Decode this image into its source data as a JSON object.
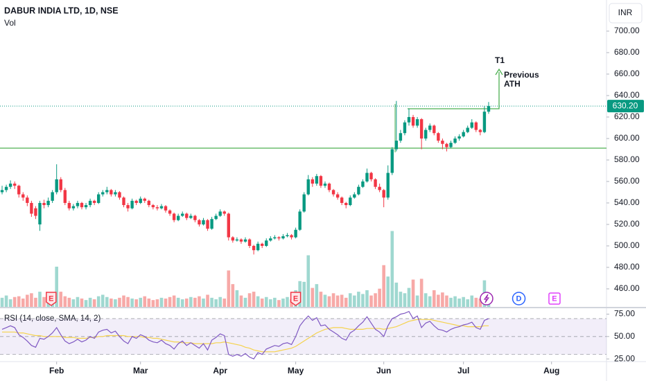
{
  "chart_data": {
    "type": "candlestick",
    "title": "DABUR INDIA LTD, 1D, NSE",
    "volume_label": "Vol",
    "currency": "INR",
    "candles": [
      [
        550,
        556,
        548,
        552
      ],
      [
        552,
        557,
        550,
        555
      ],
      [
        555,
        561,
        553,
        558
      ],
      [
        558,
        560,
        553,
        556
      ],
      [
        556,
        557,
        545,
        548
      ],
      [
        548,
        550,
        542,
        545
      ],
      [
        545,
        547,
        537,
        540
      ],
      [
        540,
        542,
        527,
        530
      ],
      [
        535,
        537,
        525,
        528
      ],
      [
        520,
        542,
        514,
        540
      ],
      [
        540,
        543,
        535,
        538
      ],
      [
        538,
        545,
        536,
        542
      ],
      [
        542,
        552,
        540,
        550
      ],
      [
        550,
        576,
        548,
        562
      ],
      [
        562,
        564,
        550,
        552
      ],
      [
        552,
        554,
        538,
        540
      ],
      [
        540,
        542,
        533,
        535
      ],
      [
        535,
        539,
        533,
        537
      ],
      [
        537,
        542,
        535,
        540
      ],
      [
        540,
        541,
        534,
        536
      ],
      [
        536,
        540,
        534,
        538
      ],
      [
        538,
        544,
        536,
        542
      ],
      [
        542,
        543,
        538,
        540
      ],
      [
        540,
        550,
        539,
        548
      ],
      [
        548,
        552,
        546,
        550
      ],
      [
        550,
        555,
        548,
        552
      ],
      [
        552,
        553,
        546,
        548
      ],
      [
        548,
        552,
        546,
        550
      ],
      [
        550,
        551,
        543,
        545
      ],
      [
        545,
        546,
        536,
        538
      ],
      [
        538,
        540,
        532,
        535
      ],
      [
        535,
        544,
        534,
        542
      ],
      [
        542,
        543,
        538,
        540
      ],
      [
        540,
        546,
        539,
        544
      ],
      [
        544,
        545,
        540,
        542
      ],
      [
        542,
        543,
        536,
        538
      ],
      [
        538,
        539,
        534,
        536
      ],
      [
        536,
        538,
        533,
        535
      ],
      [
        535,
        539,
        534,
        537
      ],
      [
        537,
        538,
        531,
        533
      ],
      [
        533,
        534,
        528,
        530
      ],
      [
        530,
        531,
        522,
        524
      ],
      [
        524,
        530,
        523,
        528
      ],
      [
        528,
        532,
        527,
        530
      ],
      [
        530,
        531,
        524,
        526
      ],
      [
        526,
        530,
        525,
        528
      ],
      [
        528,
        529,
        522,
        524
      ],
      [
        524,
        525,
        518,
        520
      ],
      [
        520,
        526,
        519,
        524
      ],
      [
        524,
        525,
        514,
        516
      ],
      [
        516,
        527,
        515,
        525
      ],
      [
        525,
        530,
        524,
        528
      ],
      [
        528,
        534,
        527,
        532
      ],
      [
        532,
        533,
        528,
        530
      ],
      [
        530,
        531,
        505,
        508
      ],
      [
        508,
        509,
        503,
        505
      ],
      [
        505,
        508,
        504,
        506
      ],
      [
        506,
        507,
        502,
        504
      ],
      [
        504,
        508,
        503,
        506
      ],
      [
        506,
        507,
        498,
        500
      ],
      [
        500,
        501,
        492,
        496
      ],
      [
        496,
        504,
        495,
        502
      ],
      [
        502,
        503,
        498,
        500
      ],
      [
        500,
        507,
        499,
        505
      ],
      [
        505,
        509,
        504,
        507
      ],
      [
        507,
        510,
        506,
        508
      ],
      [
        508,
        509,
        505,
        507
      ],
      [
        507,
        511,
        506,
        509
      ],
      [
        509,
        512,
        508,
        510
      ],
      [
        510,
        511,
        506,
        508
      ],
      [
        508,
        517,
        507,
        515
      ],
      [
        515,
        534,
        514,
        532
      ],
      [
        532,
        550,
        531,
        548
      ],
      [
        548,
        566,
        547,
        562
      ],
      [
        562,
        564,
        555,
        558
      ],
      [
        558,
        567,
        556,
        565
      ],
      [
        565,
        566,
        554,
        556
      ],
      [
        556,
        560,
        554,
        558
      ],
      [
        558,
        559,
        550,
        552
      ],
      [
        552,
        553,
        546,
        548
      ],
      [
        548,
        550,
        543,
        545
      ],
      [
        545,
        546,
        538,
        540
      ],
      [
        540,
        541,
        535,
        538
      ],
      [
        538,
        547,
        537,
        545
      ],
      [
        545,
        550,
        544,
        548
      ],
      [
        548,
        557,
        547,
        555
      ],
      [
        555,
        562,
        554,
        560
      ],
      [
        560,
        572,
        559,
        568
      ],
      [
        568,
        569,
        560,
        562
      ],
      [
        562,
        563,
        553,
        555
      ],
      [
        555,
        558,
        550,
        552
      ],
      [
        552,
        553,
        536,
        545
      ],
      [
        545,
        575,
        543,
        568
      ],
      [
        568,
        592,
        566,
        590
      ],
      [
        590,
        635,
        588,
        598
      ],
      [
        598,
        608,
        596,
        605
      ],
      [
        605,
        617,
        603,
        615
      ],
      [
        615,
        628,
        612,
        620
      ],
      [
        620,
        622,
        610,
        612
      ],
      [
        612,
        620,
        610,
        618
      ],
      [
        618,
        619,
        590,
        600
      ],
      [
        600,
        610,
        598,
        608
      ],
      [
        608,
        614,
        606,
        612
      ],
      [
        612,
        613,
        603,
        605
      ],
      [
        605,
        606,
        596,
        598
      ],
      [
        598,
        600,
        590,
        595
      ],
      [
        595,
        596,
        588,
        592
      ],
      [
        592,
        598,
        591,
        596
      ],
      [
        596,
        602,
        595,
        600
      ],
      [
        600,
        604,
        598,
        602
      ],
      [
        602,
        608,
        601,
        606
      ],
      [
        606,
        612,
        605,
        610
      ],
      [
        610,
        618,
        609,
        615
      ],
      [
        615,
        616,
        606,
        608
      ],
      [
        608,
        609,
        603,
        606
      ],
      [
        606,
        630,
        605,
        625
      ],
      [
        625,
        634,
        623,
        630.2
      ]
    ],
    "volumes": [
      1.2,
      1.5,
      1.0,
      1.3,
      1.4,
      1.1,
      1.6,
      1.8,
      1.2,
      2.0,
      1.3,
      1.1,
      1.5,
      5.3,
      2.0,
      1.4,
      1.2,
      1.0,
      1.3,
      1.1,
      0.9,
      1.2,
      1.0,
      1.4,
      1.6,
      1.3,
      1.1,
      1.0,
      1.2,
      1.5,
      1.3,
      1.1,
      1.0,
      1.2,
      1.4,
      1.1,
      0.9,
      1.0,
      1.2,
      1.1,
      1.3,
      1.5,
      1.2,
      1.0,
      1.1,
      1.3,
      1.2,
      1.4,
      1.1,
      1.6,
      1.2,
      1.0,
      1.3,
      1.1,
      4.8,
      3.0,
      2.2,
      1.5,
      1.2,
      1.8,
      2.0,
      1.4,
      1.1,
      1.3,
      1.0,
      1.2,
      0.9,
      1.1,
      1.3,
      1.0,
      2.2,
      3.4,
      3.3,
      6.8,
      2.5,
      3.0,
      2.0,
      1.6,
      1.4,
      1.8,
      1.5,
      1.6,
      1.2,
      1.8,
      1.5,
      2.0,
      1.7,
      2.2,
      1.5,
      1.8,
      2.4,
      5.5,
      4.0,
      10.0,
      3.2,
      2.0,
      1.8,
      2.5,
      3.6,
      1.5,
      3.7,
      1.8,
      1.4,
      2.2,
      1.6,
      1.9,
      1.5,
      1.2,
      1.4,
      1.1,
      1.3,
      1.0,
      1.5,
      1.2,
      1.1,
      3.5,
      1.8
    ],
    "up_color": "#089981",
    "down_color": "#f23645",
    "volume_up_color": "#9fd8d0",
    "volume_down_color": "#f7a9a7",
    "ylim": [
      443.2,
      729
    ],
    "yticks": [
      {
        "value": 460,
        "label": "460.00"
      },
      {
        "value": 480,
        "label": "480.00"
      },
      {
        "value": 500,
        "label": "500.00"
      },
      {
        "value": 520,
        "label": "520.00"
      },
      {
        "value": 540,
        "label": "540.00"
      },
      {
        "value": 560,
        "label": "560.00"
      },
      {
        "value": 580,
        "label": "580.00"
      },
      {
        "value": 600,
        "label": "600.00"
      },
      {
        "value": 620,
        "label": "620.00"
      },
      {
        "value": 640,
        "label": "640.00"
      },
      {
        "value": 660,
        "label": "660.00"
      },
      {
        "value": 680,
        "label": "680.00"
      },
      {
        "value": 700,
        "label": "700.00"
      }
    ],
    "volume_lim": [
      0,
      10.5
    ],
    "last_price": {
      "value": 630.2,
      "label": "630.20"
    },
    "levels": [
      591
    ],
    "level_color": "#4caf50",
    "xlim": [
      -0.5,
      144.1
    ],
    "xticks": [
      {
        "value": 13,
        "label": "Feb"
      },
      {
        "value": 33,
        "label": "Mar"
      },
      {
        "value": 52,
        "label": "Apr"
      },
      {
        "value": 70,
        "label": "May"
      },
      {
        "value": 91,
        "label": "Jun"
      },
      {
        "value": 110,
        "label": "Jul"
      },
      {
        "value": 131,
        "label": "Aug"
      }
    ],
    "annotations": {
      "target": "T1",
      "note": [
        "Previous",
        "ATH"
      ]
    },
    "events": [
      {
        "label": "E",
        "x": 11.7,
        "color": "#f23645"
      },
      {
        "label": "E",
        "x": 70,
        "color": "#f23645"
      },
      {
        "x": 115.5,
        "color": "#9c27b0"
      },
      {
        "label": "D",
        "x": 123.2,
        "color": "#2962ff"
      },
      {
        "label": "E",
        "x": 131.7,
        "color": "#e040fb"
      }
    ],
    "grid": false,
    "rsi": {
      "label": "RSI (14, close, SMA, 14, 2)",
      "values": [
        58,
        60,
        62,
        60,
        52,
        49,
        45,
        40,
        38,
        48,
        47,
        50,
        54,
        60,
        52,
        45,
        42,
        44,
        47,
        44,
        46,
        50,
        48,
        55,
        57,
        58,
        54,
        56,
        50,
        45,
        42,
        50,
        48,
        52,
        50,
        46,
        44,
        43,
        46,
        42,
        40,
        36,
        42,
        45,
        40,
        43,
        40,
        37,
        42,
        35,
        46,
        49,
        53,
        51,
        30,
        28,
        30,
        28,
        31,
        27,
        25,
        32,
        30,
        36,
        38,
        40,
        39,
        42,
        43,
        41,
        50,
        62,
        68,
        73,
        68,
        71,
        62,
        63,
        58,
        55,
        52,
        48,
        46,
        54,
        57,
        62,
        66,
        72,
        65,
        58,
        55,
        50,
        62,
        70,
        72,
        75,
        76,
        78,
        70,
        73,
        60,
        65,
        67,
        62,
        58,
        57,
        55,
        58,
        60,
        61,
        63,
        64,
        66,
        60,
        58,
        68,
        70
      ],
      "sma": [
        55,
        55,
        55,
        55,
        54,
        54,
        53,
        52,
        51,
        51,
        50,
        50,
        50,
        50,
        50,
        49,
        49,
        49,
        48,
        48,
        48,
        49,
        49,
        50,
        50,
        51,
        51,
        51,
        51,
        51,
        50,
        50,
        50,
        50,
        49,
        49,
        48,
        48,
        47,
        46,
        45,
        44,
        44,
        43,
        43,
        43,
        42,
        42,
        42,
        42,
        42,
        43,
        43,
        44,
        43,
        42,
        41,
        40,
        38,
        37,
        35,
        34,
        33,
        33,
        33,
        33,
        34,
        35,
        36,
        37,
        39,
        42,
        45,
        48,
        51,
        54,
        56,
        58,
        59,
        60,
        60,
        60,
        59,
        58,
        58,
        58,
        58,
        59,
        59,
        59,
        59,
        58,
        59,
        60,
        61,
        63,
        65,
        67,
        68,
        69,
        69,
        69,
        69,
        68,
        67,
        66,
        65,
        64,
        63,
        62,
        62,
        61,
        61,
        61,
        61,
        62,
        62
      ],
      "color": "#7e57c2",
      "sma_color": "#f5d24b",
      "ylim": [
        22,
        80
      ],
      "yticks": [
        {
          "value": 25,
          "label": "25.00"
        },
        {
          "value": 50,
          "label": "50.00"
        },
        {
          "value": 75,
          "label": "75.00"
        }
      ],
      "bands": [
        30,
        50,
        70
      ]
    }
  }
}
